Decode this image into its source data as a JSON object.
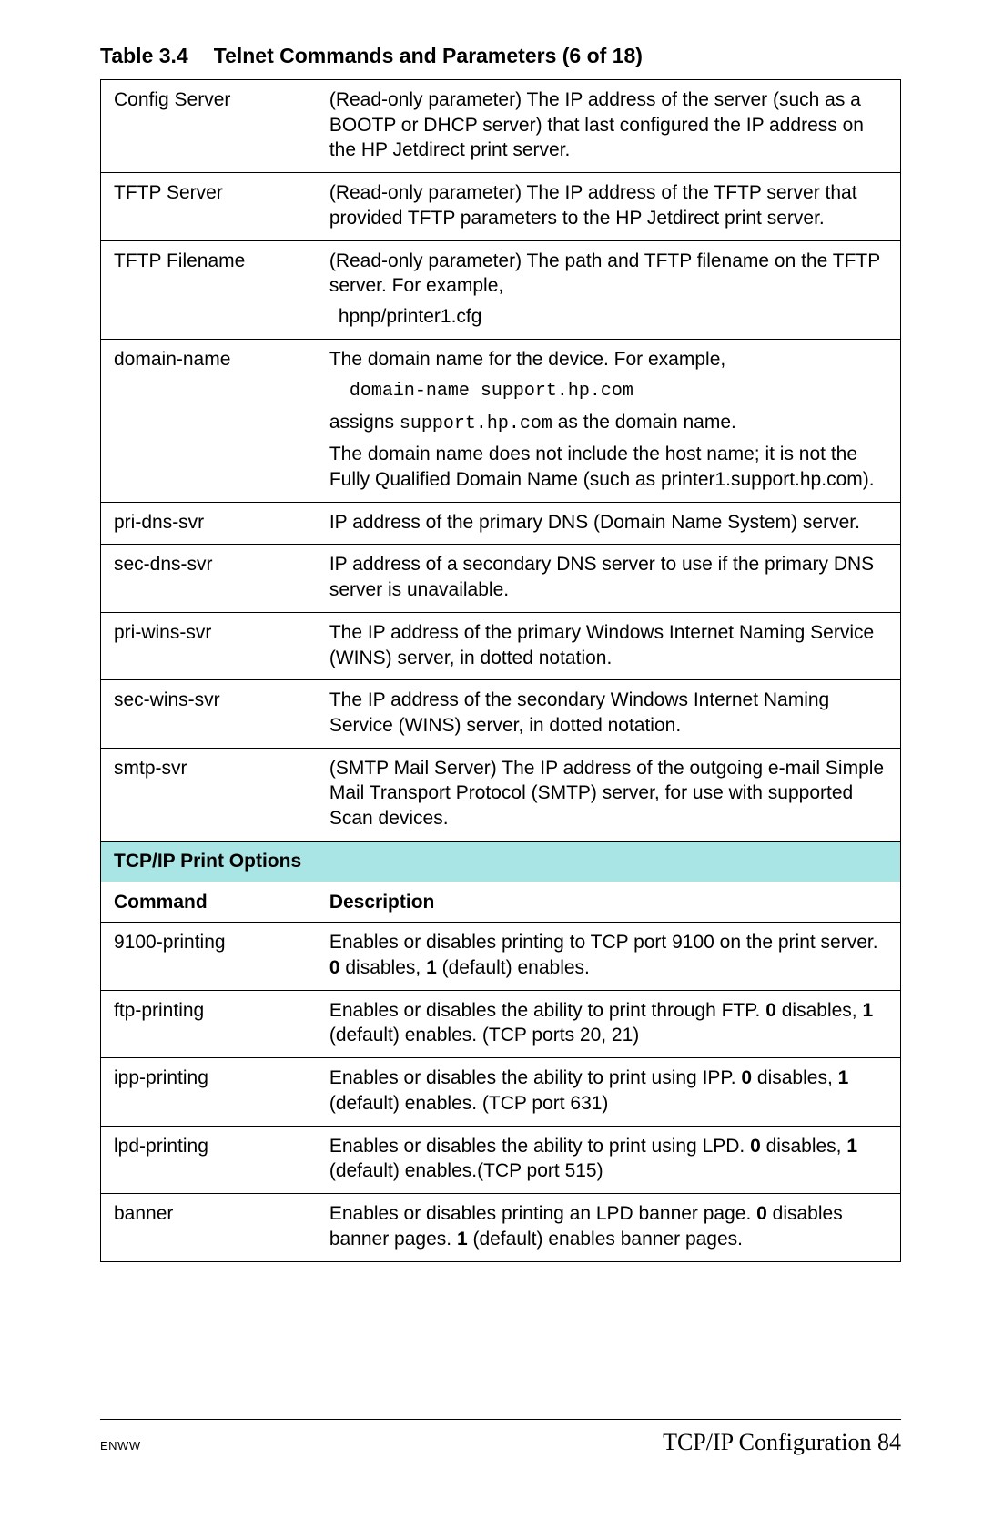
{
  "title": {
    "table_label": "Table 3.4",
    "table_name": "Telnet Commands and Parameters (6 of 18)"
  },
  "colors": {
    "section_bg": "#aae5e5",
    "border": "#000000",
    "text": "#000000",
    "background": "#ffffff"
  },
  "rows_top": [
    {
      "cmd": "Config Server",
      "desc": [
        {
          "type": "text",
          "text": "(Read-only parameter) The IP address of the server (such as a BOOTP or DHCP server) that last configured the IP address on the HP Jetdirect print server."
        }
      ]
    },
    {
      "cmd": "TFTP Server",
      "desc": [
        {
          "type": "text",
          "text": "(Read-only parameter) The IP address of the TFTP server that provided TFTP parameters to the HP Jetdirect print server."
        }
      ]
    },
    {
      "cmd": "TFTP Filename",
      "desc": [
        {
          "type": "text",
          "text": "(Read-only parameter) The path and TFTP filename on the TFTP server. For example,"
        },
        {
          "type": "text",
          "text": "hpnp/printer1.cfg",
          "class": "indent-sm"
        }
      ]
    },
    {
      "cmd": "domain-name",
      "desc": [
        {
          "type": "text",
          "text": "The domain name for the device. For example,"
        },
        {
          "type": "mono",
          "text": "domain-name support.hp.com",
          "class": "indent"
        },
        {
          "type": "mixed",
          "parts": [
            {
              "t": "assigns "
            },
            {
              "t": "support.hp.com",
              "mono": true
            },
            {
              "t": " as the domain name."
            }
          ]
        },
        {
          "type": "text",
          "text": "The domain name does not include the host name; it is not the Fully Qualified Domain Name (such as printer1.support.hp.com)."
        }
      ]
    },
    {
      "cmd": "pri-dns-svr",
      "desc": [
        {
          "type": "text",
          "text": "IP address of the primary DNS (Domain Name System) server."
        }
      ]
    },
    {
      "cmd": "sec-dns-svr",
      "desc": [
        {
          "type": "text",
          "text": "IP address of a secondary DNS server to use if the primary DNS server is unavailable."
        }
      ]
    },
    {
      "cmd": "pri-wins-svr",
      "desc": [
        {
          "type": "text",
          "text": "The IP address of the primary Windows Internet Naming Service (WINS) server, in dotted notation."
        }
      ]
    },
    {
      "cmd": "sec-wins-svr",
      "desc": [
        {
          "type": "text",
          "text": "The IP address of the secondary Windows Internet Naming Service (WINS) server, in dotted notation."
        }
      ]
    },
    {
      "cmd": "smtp-svr",
      "desc": [
        {
          "type": "text",
          "text": "(SMTP Mail Server) The IP address of the outgoing e-mail Simple Mail Transport Protocol (SMTP) server, for use with supported Scan devices."
        }
      ]
    }
  ],
  "section_header": "TCP/IP Print Options",
  "col_headers": {
    "cmd": "Command",
    "desc": "Description"
  },
  "rows_bottom": [
    {
      "cmd": "9100-printing",
      "desc": [
        {
          "type": "mixed",
          "parts": [
            {
              "t": "Enables or disables printing to TCP port 9100 on the print server. "
            },
            {
              "t": "0",
              "bold": true
            },
            {
              "t": " disables, "
            },
            {
              "t": "1",
              "bold": true
            },
            {
              "t": " (default) enables."
            }
          ]
        }
      ]
    },
    {
      "cmd": "ftp-printing",
      "desc": [
        {
          "type": "mixed",
          "parts": [
            {
              "t": "Enables or disables the ability to print through FTP. "
            },
            {
              "t": "0",
              "bold": true
            },
            {
              "t": " disables, "
            },
            {
              "t": "1",
              "bold": true
            },
            {
              "t": " (default) enables. (TCP ports 20, 21)"
            }
          ]
        }
      ]
    },
    {
      "cmd": "ipp-printing",
      "desc": [
        {
          "type": "mixed",
          "parts": [
            {
              "t": "Enables or disables the ability to print using IPP. "
            },
            {
              "t": "0",
              "bold": true
            },
            {
              "t": " disables, "
            },
            {
              "t": "1",
              "bold": true
            },
            {
              "t": " (default) enables. (TCP port 631)"
            }
          ]
        }
      ]
    },
    {
      "cmd": "lpd-printing",
      "desc": [
        {
          "type": "mixed",
          "parts": [
            {
              "t": "Enables or disables the ability to print using LPD. "
            },
            {
              "t": "0",
              "bold": true
            },
            {
              "t": " disables, "
            },
            {
              "t": "1",
              "bold": true
            },
            {
              "t": " (default) enables.(TCP port 515)"
            }
          ]
        }
      ]
    },
    {
      "cmd": "banner",
      "desc": [
        {
          "type": "mixed",
          "parts": [
            {
              "t": "Enables or disables printing an LPD banner page. "
            },
            {
              "t": "0",
              "bold": true
            },
            {
              "t": " disables banner pages. "
            },
            {
              "t": "1",
              "bold": true
            },
            {
              "t": " (default) enables banner pages."
            }
          ]
        }
      ]
    }
  ],
  "footer": {
    "left": "ENWW",
    "right_title": "TCP/IP Configuration",
    "page_num": "84"
  }
}
